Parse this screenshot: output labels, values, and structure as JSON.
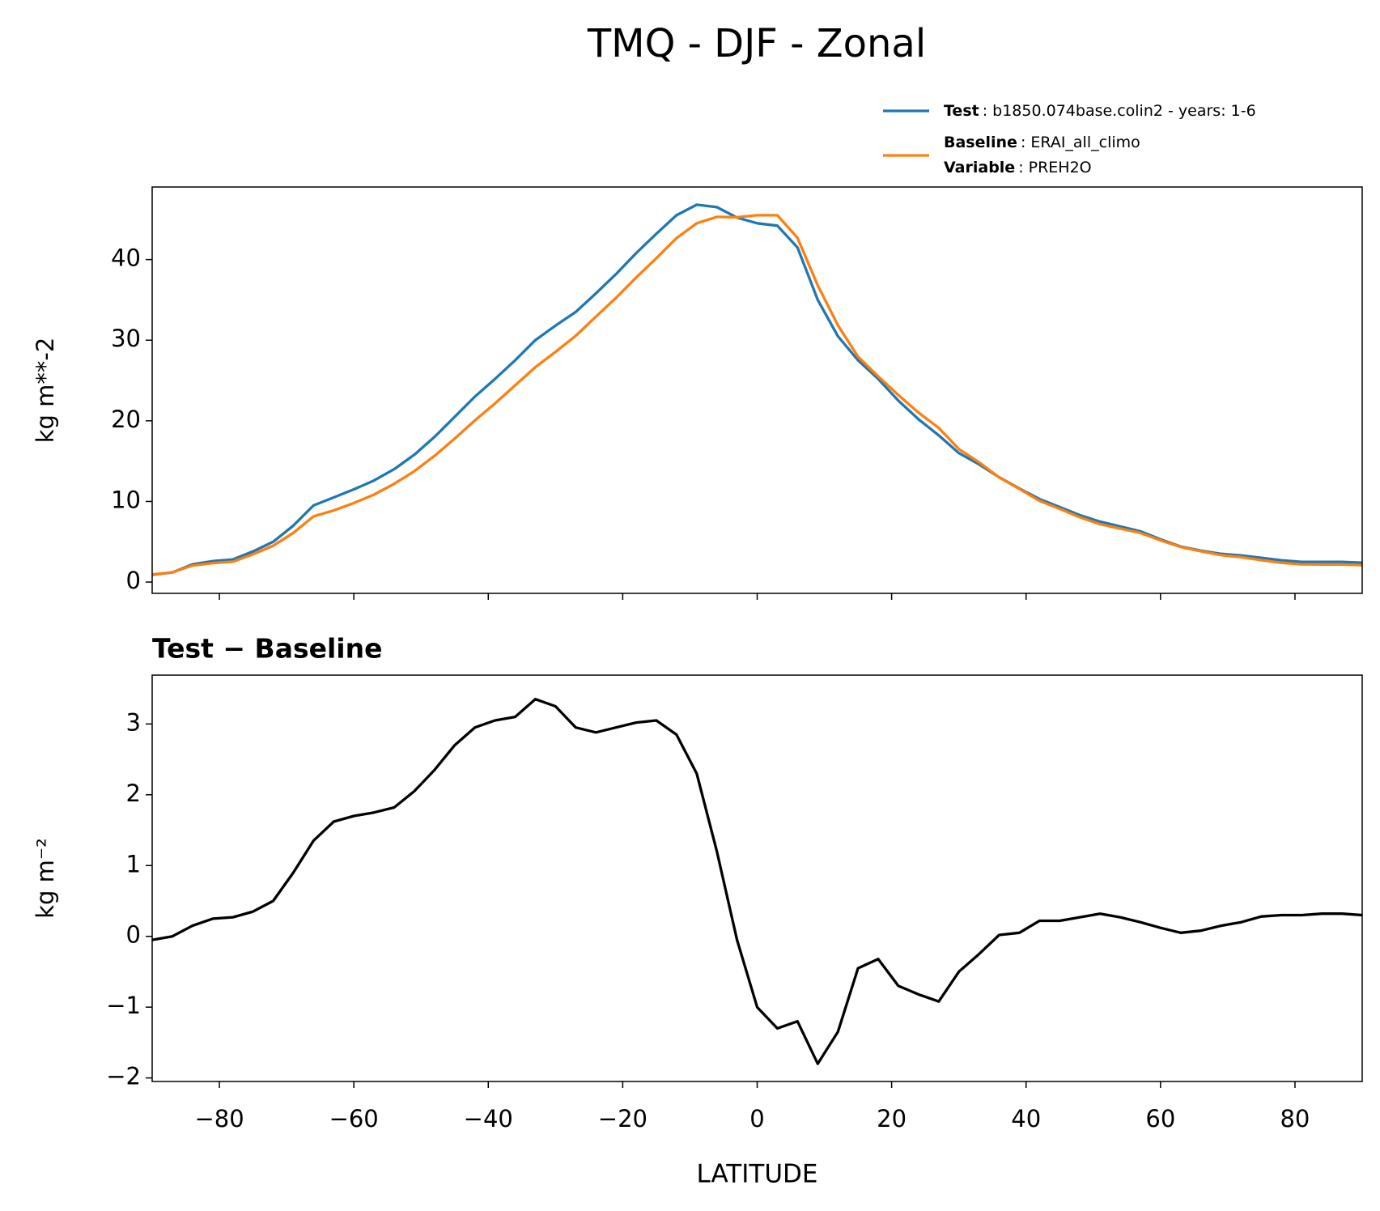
{
  "chart_data": [
    {
      "type": "line",
      "title": "TMQ - DJF - Zonal",
      "ylabel": "kg m**-2",
      "x": [
        -90,
        -87,
        -84,
        -81,
        -78,
        -75,
        -72,
        -69,
        -66,
        -63,
        -60,
        -57,
        -54,
        -51,
        -48,
        -45,
        -42,
        -39,
        -36,
        -33,
        -30,
        -27,
        -24,
        -21,
        -18,
        -15,
        -12,
        -9,
        -6,
        -3,
        0,
        3,
        6,
        9,
        12,
        15,
        18,
        21,
        24,
        27,
        30,
        33,
        36,
        39,
        42,
        45,
        48,
        51,
        54,
        57,
        60,
        63,
        66,
        69,
        72,
        75,
        78,
        81,
        84,
        87,
        90
      ],
      "xlim": [
        -90,
        90
      ],
      "ylim": [
        -1.4,
        49
      ],
      "yticks": [
        0,
        10,
        20,
        30,
        40
      ],
      "variable_label": "Variable",
      "variable": ": PREH2O",
      "series": [
        {
          "name": "Test",
          "description": ": b1850.074base.colin2 - years: 1-6",
          "color": "#1f77b4",
          "values": [
            0.9,
            1.2,
            2.2,
            2.6,
            2.8,
            3.8,
            5.0,
            7.0,
            9.5,
            10.5,
            11.5,
            12.6,
            14.0,
            15.8,
            18.0,
            20.5,
            23.0,
            25.2,
            27.5,
            30.0,
            31.8,
            33.5,
            35.8,
            38.2,
            40.8,
            43.2,
            45.5,
            46.8,
            46.5,
            45.2,
            44.5,
            44.2,
            41.5,
            35.0,
            30.5,
            27.5,
            25.2,
            22.5,
            20.2,
            18.2,
            16.0,
            14.6,
            13.0,
            11.6,
            10.3,
            9.3,
            8.3,
            7.5,
            6.9,
            6.3,
            5.3,
            4.4,
            3.9,
            3.5,
            3.3,
            3.0,
            2.7,
            2.5,
            2.5,
            2.5,
            2.4
          ]
        },
        {
          "name": "Baseline",
          "description": ": ERAI_all_climo",
          "color": "#ff7f0e",
          "values": [
            0.95,
            1.2,
            2.05,
            2.35,
            2.53,
            3.45,
            4.5,
            6.1,
            8.15,
            8.88,
            9.8,
            10.85,
            12.18,
            13.75,
            15.65,
            17.8,
            20.05,
            22.15,
            24.4,
            26.65,
            28.55,
            30.55,
            32.92,
            35.25,
            37.78,
            40.15,
            42.65,
            44.5,
            45.3,
            45.25,
            45.5,
            45.5,
            42.7,
            36.8,
            31.85,
            27.95,
            25.52,
            23.2,
            21.02,
            19.12,
            16.5,
            14.85,
            12.98,
            11.55,
            10.08,
            9.08,
            8.03,
            7.18,
            6.63,
            6.1,
            5.18,
            4.35,
            3.82,
            3.35,
            3.1,
            2.72,
            2.4,
            2.2,
            2.18,
            2.18,
            2.1
          ]
        }
      ]
    },
    {
      "type": "line",
      "title": "Test − Baseline",
      "xlabel": "LATITUDE",
      "ylabel": "kg m⁻²",
      "x": [
        -90,
        -87,
        -84,
        -81,
        -78,
        -75,
        -72,
        -69,
        -66,
        -63,
        -60,
        -57,
        -54,
        -51,
        -48,
        -45,
        -42,
        -39,
        -36,
        -33,
        -30,
        -27,
        -24,
        -21,
        -18,
        -15,
        -12,
        -9,
        -6,
        -3,
        0,
        3,
        6,
        9,
        12,
        15,
        18,
        21,
        24,
        27,
        30,
        33,
        36,
        39,
        42,
        45,
        48,
        51,
        54,
        57,
        60,
        63,
        66,
        69,
        72,
        75,
        78,
        81,
        84,
        87,
        90
      ],
      "xlim": [
        -90,
        90
      ],
      "ylim": [
        -2.05,
        3.69
      ],
      "xticks": [
        {
          "value": -80,
          "label": "−80"
        },
        {
          "value": -60,
          "label": "−60"
        },
        {
          "value": -40,
          "label": "−40"
        },
        {
          "value": -20,
          "label": "−20"
        },
        0,
        20,
        40,
        60,
        80
      ],
      "yticks": [
        {
          "value": -2,
          "label": "−2"
        },
        {
          "value": -1,
          "label": "−1"
        },
        0,
        1,
        2,
        3
      ],
      "series": [
        {
          "color": "#000000",
          "values": [
            -0.05,
            0.0,
            0.15,
            0.25,
            0.27,
            0.35,
            0.5,
            0.9,
            1.35,
            1.62,
            1.7,
            1.75,
            1.82,
            2.05,
            2.35,
            2.7,
            2.95,
            3.05,
            3.1,
            3.35,
            3.25,
            2.95,
            2.88,
            2.95,
            3.02,
            3.05,
            2.85,
            2.3,
            1.2,
            -0.05,
            -1.0,
            -1.3,
            -1.2,
            -1.8,
            -1.35,
            -0.45,
            -0.32,
            -0.7,
            -0.82,
            -0.92,
            -0.5,
            -0.25,
            0.02,
            0.05,
            0.22,
            0.22,
            0.27,
            0.32,
            0.27,
            0.2,
            0.12,
            0.05,
            0.08,
            0.15,
            0.2,
            0.28,
            0.3,
            0.3,
            0.32,
            0.32,
            0.3
          ]
        }
      ]
    }
  ]
}
